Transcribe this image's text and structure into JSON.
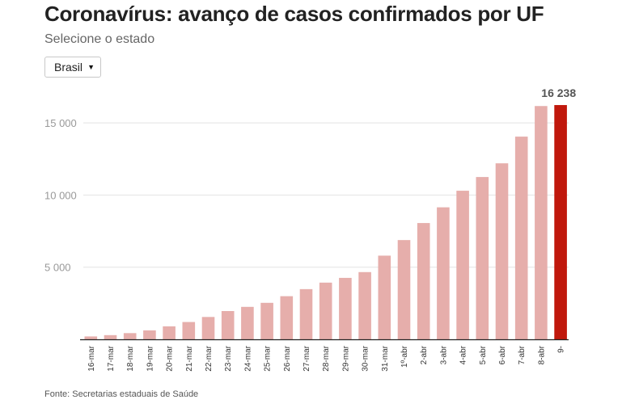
{
  "header": {
    "title": "Coronavírus: avanço de casos confirmados por UF",
    "subtitle": "Selecione o estado"
  },
  "selector": {
    "selected": "Brasil"
  },
  "footer": {
    "source": "Fonte: Secretarias estaduais de Saúde"
  },
  "colors": {
    "bar": "#e6aeab",
    "highlight": "#c0180c",
    "grid": "#e3e3e3",
    "axis": "#222222",
    "tick_text": "#999999"
  },
  "chart_data": {
    "type": "bar",
    "categories": [
      "16-mar",
      "17-mar",
      "18-mar",
      "19-mar",
      "20-mar",
      "21-mar",
      "22-mar",
      "23-mar",
      "24-mar",
      "25-mar",
      "26-mar",
      "27-mar",
      "28-mar",
      "29-mar",
      "30-mar",
      "31-mar",
      "1º-abr",
      "2-abr",
      "3-abr",
      "4-abr",
      "5-abr",
      "6-abr",
      "7-abr",
      "8-abr",
      "9-"
    ],
    "values": [
      200,
      290,
      430,
      620,
      900,
      1200,
      1550,
      1960,
      2250,
      2530,
      2990,
      3480,
      3930,
      4260,
      4660,
      5800,
      6880,
      8060,
      9150,
      10300,
      11250,
      12200,
      14050,
      16170,
      16238
    ],
    "highlight_index": 24,
    "highlight_label": "16 238",
    "yticks": [
      5000,
      10000,
      15000
    ],
    "ytick_labels": [
      "5 000",
      "10 000",
      "15 000"
    ],
    "ylim": [
      0,
      16800
    ],
    "grid": true
  }
}
